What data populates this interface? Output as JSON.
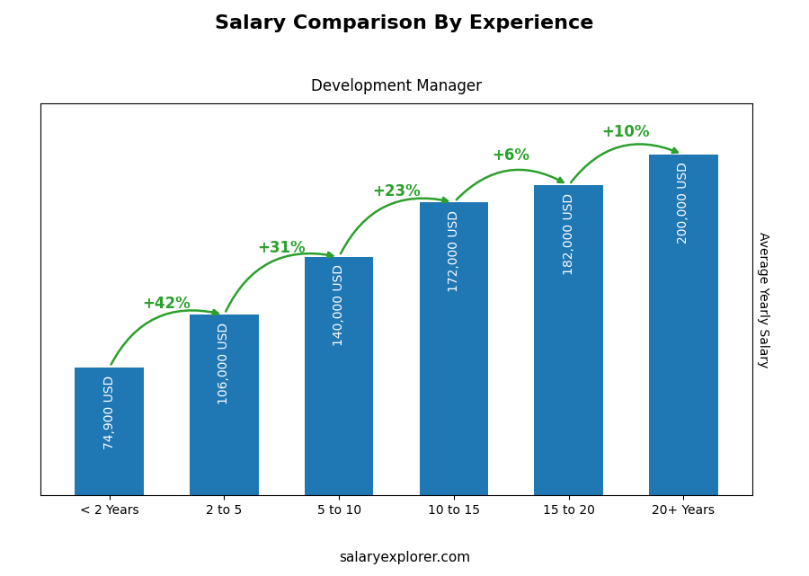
{
  "chart_data": {
    "type": "bar",
    "title": "Salary Comparison By Experience",
    "subtitle": "Development Manager",
    "ylabel": "Average Yearly Salary",
    "watermark": "salaryexplorer.com",
    "categories": [
      "< 2 Years",
      "2 to 5",
      "5 to 10",
      "10 to 15",
      "15 to 20",
      "20+ Years"
    ],
    "values": [
      74900,
      106000,
      140000,
      172000,
      182000,
      200000
    ],
    "value_labels": [
      "74,900 USD",
      "106,000 USD",
      "140,000 USD",
      "172,000 USD",
      "182,000 USD",
      "200,000 USD"
    ],
    "data_labels": true,
    "annotations": [
      "+42%",
      "+31%",
      "+23%",
      "+6%",
      "+10%"
    ],
    "ylim": [
      0,
      230000
    ],
    "tick_labels": "x",
    "grid": false
  }
}
